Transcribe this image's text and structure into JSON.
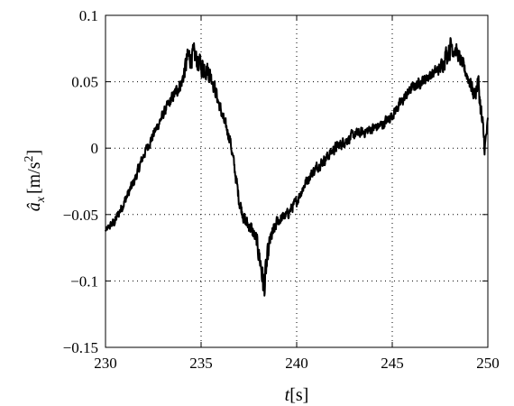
{
  "chart_data": {
    "type": "line",
    "xlabel": "t[s]",
    "xlabel_var": "t",
    "xlabel_unit": "[s]",
    "ylabel_var": "â",
    "ylabel_sub": "x",
    "ylabel_unit": "[m/s",
    "ylabel_sup": "2",
    "ylabel_close": "]",
    "xlim": [
      230,
      250
    ],
    "ylim": [
      -0.15,
      0.1
    ],
    "xticks": [
      230,
      235,
      240,
      245,
      250
    ],
    "yticks": [
      -0.15,
      -0.1,
      -0.05,
      0,
      0.05,
      0.1
    ],
    "xtick_labels": [
      "230",
      "235",
      "240",
      "245",
      "250"
    ],
    "ytick_labels": [
      "−0.15",
      "−0.1",
      "−0.05",
      "0",
      "0.05",
      "0.1"
    ],
    "grid": true,
    "grid_style": "dotted",
    "line_color": "#000000",
    "series": [
      {
        "x": [
          230.0,
          230.5,
          231.0,
          231.5,
          232.0,
          232.5,
          233.0,
          233.5,
          234.0,
          234.3,
          234.6,
          235.0,
          235.3,
          235.6,
          235.9,
          236.2,
          236.5,
          236.8,
          237.0,
          237.3,
          237.6,
          237.9,
          238.1,
          238.3,
          238.6,
          239.0,
          239.5,
          240.0,
          240.5,
          241.0,
          241.5,
          242.0,
          242.5,
          243.0,
          243.5,
          244.0,
          244.5,
          245.0,
          245.5,
          246.0,
          246.5,
          247.0,
          247.5,
          247.8,
          248.1,
          248.4,
          248.7,
          249.0,
          249.3,
          249.5,
          249.7,
          249.85,
          250.0
        ],
        "y": [
          -0.062,
          -0.055,
          -0.04,
          -0.025,
          -0.005,
          0.01,
          0.025,
          0.038,
          0.05,
          0.068,
          0.07,
          0.062,
          0.06,
          0.052,
          0.035,
          0.02,
          0.008,
          -0.02,
          -0.04,
          -0.055,
          -0.06,
          -0.07,
          -0.085,
          -0.105,
          -0.07,
          -0.055,
          -0.05,
          -0.04,
          -0.025,
          -0.015,
          -0.008,
          0.0,
          0.005,
          0.01,
          0.012,
          0.015,
          0.018,
          0.025,
          0.035,
          0.045,
          0.05,
          0.055,
          0.06,
          0.07,
          0.078,
          0.072,
          0.062,
          0.052,
          0.04,
          0.05,
          0.018,
          0.0,
          0.02
        ],
        "noise": [
          0.003,
          0.006,
          0.006,
          0.006,
          0.006,
          0.006,
          0.006,
          0.007,
          0.008,
          0.014,
          0.012,
          0.012,
          0.012,
          0.01,
          0.008,
          0.007,
          0.007,
          0.008,
          0.008,
          0.008,
          0.008,
          0.01,
          0.014,
          0.02,
          0.01,
          0.007,
          0.006,
          0.006,
          0.006,
          0.006,
          0.006,
          0.006,
          0.006,
          0.006,
          0.006,
          0.006,
          0.006,
          0.006,
          0.006,
          0.006,
          0.006,
          0.006,
          0.007,
          0.012,
          0.014,
          0.008,
          0.008,
          0.008,
          0.01,
          0.012,
          0.015,
          0.012,
          0.005
        ]
      }
    ]
  }
}
